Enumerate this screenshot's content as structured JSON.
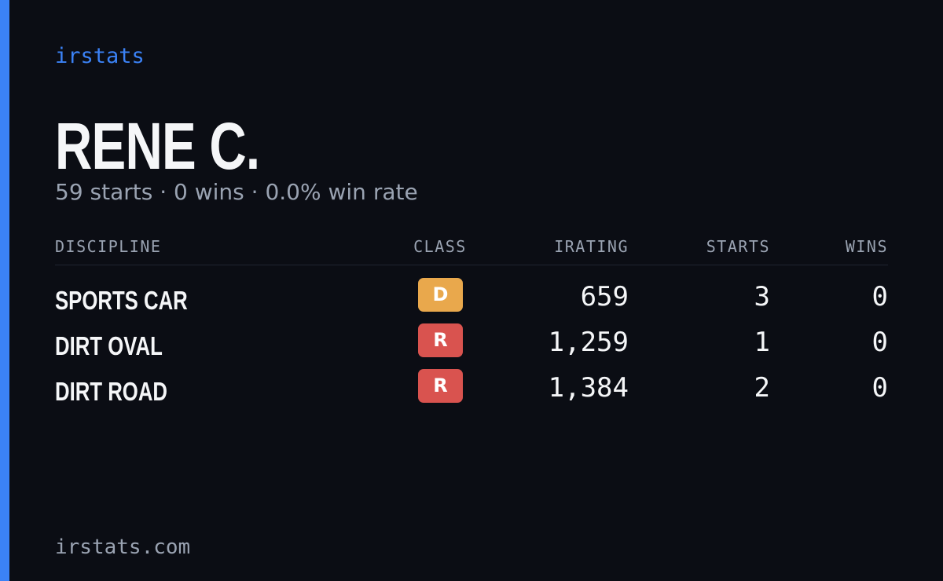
{
  "header": {
    "brand": "irstats",
    "name": "RENE C.",
    "summary": "59 starts · 0 wins · 0.0% win rate"
  },
  "table": {
    "columns": [
      "DISCIPLINE",
      "CLASS",
      "IRATING",
      "STARTS",
      "WINS"
    ],
    "rows": [
      {
        "discipline": "SPORTS CAR",
        "class": "D",
        "class_color": "#e9a84c",
        "irating": "659",
        "starts": "3",
        "wins": "0"
      },
      {
        "discipline": "DIRT OVAL",
        "class": "R",
        "class_color": "#d9534f",
        "irating": "1,259",
        "starts": "1",
        "wins": "0"
      },
      {
        "discipline": "DIRT ROAD",
        "class": "R",
        "class_color": "#d9534f",
        "irating": "1,384",
        "starts": "2",
        "wins": "0"
      }
    ]
  },
  "footer": {
    "site": "irstats.com"
  }
}
